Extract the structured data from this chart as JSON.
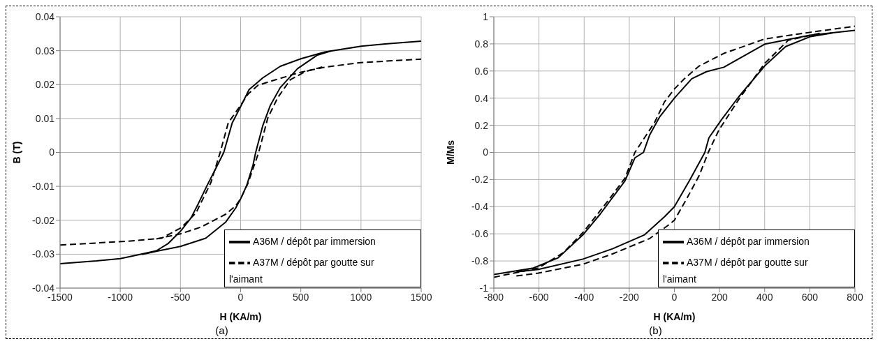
{
  "chart_data": [
    {
      "type": "line",
      "xlabel": "H (KA/m)",
      "ylabel": "B (T)",
      "xlim": [
        -1500,
        1500
      ],
      "xticks": [
        -1500,
        -1000,
        -500,
        0,
        500,
        1000,
        1500
      ],
      "ylim": [
        -0.04,
        0.04
      ],
      "yticks": [
        -0.04,
        -0.03,
        -0.02,
        -0.01,
        0,
        0.01,
        0.02,
        0.03,
        0.04
      ],
      "grid": true,
      "legend": "bottom right",
      "marker": "none",
      "annotations": [
        "(a)"
      ],
      "series": [
        {
          "name": "A36M / dépôt par immersion",
          "color": "#000000",
          "line_style": "solid",
          "x": [
            -1500,
            -1200,
            -1000,
            -850,
            -700,
            -600,
            -494,
            -412,
            -350,
            -278,
            -210,
            -140,
            -70,
            0,
            70,
            185,
            330,
            500,
            700,
            800,
            1000,
            1200,
            1500
          ],
          "values": [
            -0.0328,
            -0.032,
            -0.0313,
            -0.0302,
            -0.029,
            -0.0268,
            -0.023,
            -0.0193,
            -0.015,
            -0.0097,
            -0.005,
            0,
            0.0087,
            0.0135,
            0.0185,
            0.022,
            0.0254,
            0.0276,
            0.0296,
            0.0302,
            0.0313,
            0.032,
            0.0328
          ]
        },
        {
          "color": "#000000",
          "line_style": "solid",
          "x": [
            -820,
            -680,
            -500,
            -290,
            -123,
            -41,
            0,
            51,
            103,
            125,
            185,
            247,
            329,
            473,
            638,
            761
          ],
          "values": [
            -0.0301,
            -0.029,
            -0.0277,
            -0.0253,
            -0.0205,
            -0.0164,
            -0.0137,
            -0.0097,
            -0.0037,
            0,
            0.008,
            0.0139,
            0.0191,
            0.0247,
            0.0287,
            0.03
          ]
        },
        {
          "name": "A37M / dépôt par goutte sur l'aimant",
          "color": "#000000",
          "line_style": "dashed",
          "x": [
            -1500,
            -947,
            -658,
            -494,
            -370,
            -247,
            -170,
            -103,
            0,
            62,
            144,
            288,
            494,
            680,
            800,
            1000,
            1500
          ],
          "values": [
            -0.0273,
            -0.0262,
            -0.0253,
            -0.0222,
            -0.0178,
            -0.0089,
            0,
            0.0087,
            0.0139,
            0.0172,
            0.0198,
            0.0214,
            0.0236,
            0.025,
            0.0256,
            0.0265,
            0.0275
          ]
        },
        {
          "color": "#000000",
          "line_style": "dashed",
          "x": [
            -700,
            -500,
            -329,
            -123,
            -41,
            0,
            62,
            150,
            226,
            309,
            412,
            535,
            679
          ],
          "values": [
            -0.0255,
            -0.024,
            -0.022,
            -0.0182,
            -0.0157,
            -0.0137,
            -0.009,
            0,
            0.0102,
            0.0162,
            0.0214,
            0.0238,
            0.0252
          ]
        }
      ]
    },
    {
      "type": "line",
      "xlabel": "H (KA/m)",
      "ylabel": "M/Ms",
      "xlim": [
        -800,
        800
      ],
      "xticks": [
        -800,
        -600,
        -400,
        -200,
        0,
        200,
        400,
        600,
        800
      ],
      "ylim": [
        -1,
        1
      ],
      "yticks": [
        -1,
        -0.8,
        -0.6,
        -0.4,
        -0.2,
        0,
        0.2,
        0.4,
        0.6,
        0.8,
        1
      ],
      "grid": true,
      "legend": "bottom right",
      "marker": "none",
      "annotations": [
        "(b)"
      ],
      "series": [
        {
          "name": "A36M / dépôt par immersion",
          "color": "#000000",
          "line_style": "solid",
          "x": [
            -800,
            -625,
            -515,
            -405,
            -329,
            -219,
            -175,
            -137,
            -110,
            -66,
            0,
            77,
            142,
            219,
            400,
            600,
            800
          ],
          "values": [
            -0.9,
            -0.852,
            -0.777,
            -0.607,
            -0.455,
            -0.21,
            -0.04,
            0,
            0.127,
            0.26,
            0.4,
            0.543,
            0.595,
            0.628,
            0.798,
            0.864,
            0.9
          ]
        },
        {
          "color": "#000000",
          "line_style": "solid",
          "x": [
            -700,
            -603,
            -405,
            -274,
            -132,
            -44,
            0,
            66,
            135,
            153,
            208,
            285,
            400,
            493,
            603,
            700
          ],
          "values": [
            -0.88,
            -0.862,
            -0.786,
            -0.71,
            -0.607,
            -0.474,
            -0.4,
            -0.21,
            0,
            0.108,
            0.24,
            0.41,
            0.637,
            0.78,
            0.854,
            0.88
          ]
        },
        {
          "name": "A37M / dépôt par goutte sur l'aimant",
          "color": "#000000",
          "line_style": "dashed",
          "x": [
            -800,
            -603,
            -493,
            -405,
            -296,
            -219,
            -175,
            -88,
            -44,
            0,
            44,
            110,
            219,
            400,
            600,
            800
          ],
          "values": [
            -0.92,
            -0.852,
            -0.74,
            -0.59,
            -0.36,
            -0.19,
            0,
            0.22,
            0.372,
            0.467,
            0.543,
            0.637,
            0.73,
            0.836,
            0.885,
            0.93
          ]
        },
        {
          "color": "#000000",
          "line_style": "dashed",
          "x": [
            -700,
            -603,
            -405,
            -274,
            -110,
            -22,
            0,
            55,
            110,
            150,
            197,
            285,
            400,
            504,
            658
          ],
          "values": [
            -0.91,
            -0.89,
            -0.824,
            -0.748,
            -0.635,
            -0.53,
            -0.5,
            -0.34,
            -0.17,
            0,
            0.164,
            0.39,
            0.656,
            0.826,
            0.883
          ]
        }
      ]
    }
  ]
}
